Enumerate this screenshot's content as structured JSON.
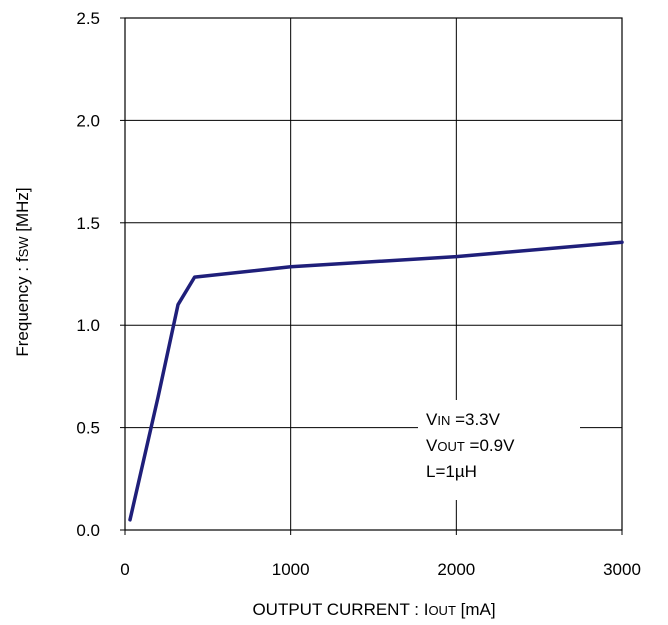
{
  "chart_data": {
    "type": "line",
    "title": "",
    "xlabel": {
      "main": "OUTPUT CURRENT : I",
      "sub": "OUT",
      "unit": " [mA]"
    },
    "ylabel": {
      "main": "Frequency : f",
      "sub": "SW",
      "unit": " [MHz]"
    },
    "xlim": [
      0,
      3000
    ],
    "ylim": [
      0,
      2.5
    ],
    "x_ticks": [
      "0",
      "1000",
      "2000",
      "3000"
    ],
    "y_ticks": [
      "0.0",
      "0.5",
      "1.0",
      "1.5",
      "2.0",
      "2.5"
    ],
    "grid": true,
    "line_color": "#1f1f7a",
    "series": [
      {
        "x": [
          30,
          200,
          320,
          420,
          1000,
          2000,
          3000
        ],
        "y": [
          0.05,
          0.65,
          1.1,
          1.235,
          1.285,
          1.335,
          1.405
        ]
      }
    ],
    "annotation": {
      "lines": [
        {
          "main": "V",
          "sub": "IN",
          "rest": " =3.3V"
        },
        {
          "main": "V",
          "sub": "OUT",
          "rest": " =0.9V"
        },
        {
          "main": "L=1µH",
          "sub": "",
          "rest": ""
        }
      ]
    }
  }
}
